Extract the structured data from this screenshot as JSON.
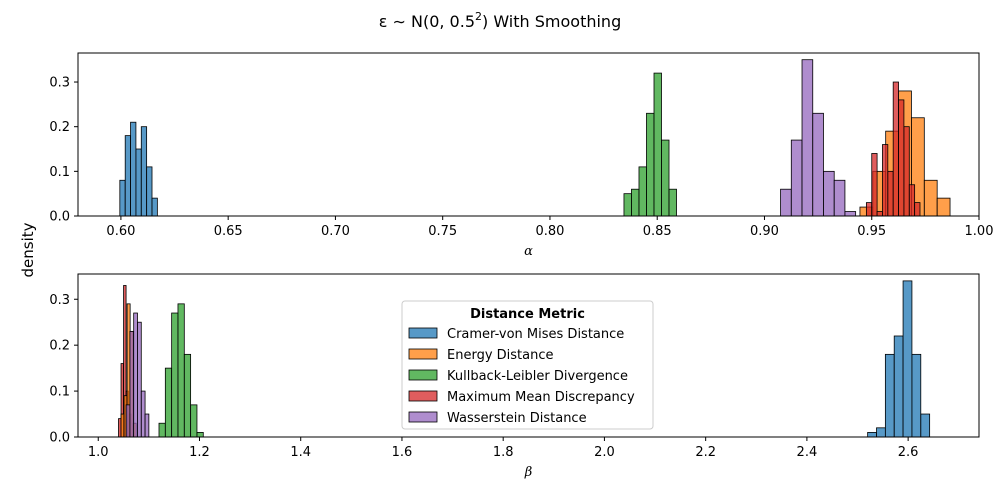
{
  "figure": {
    "title_prefix": "ε ∼ N(0, 0.5",
    "title_sup": "2",
    "title_suffix": ") With Smoothing",
    "ylabel": "density"
  },
  "legend": {
    "title": "Distance Metric",
    "placement": "center",
    "entries": [
      {
        "label": "Cramer-von Mises Distance",
        "color": "#1f77b4"
      },
      {
        "label": "Energy Distance",
        "color": "#ff7f0e"
      },
      {
        "label": "Kullback-Leibler Divergence",
        "color": "#2ca02c"
      },
      {
        "label": "Maximum Mean Discrepancy",
        "color": "#d62728"
      },
      {
        "label": "Wasserstein Distance",
        "color": "#9467bd"
      }
    ]
  },
  "chart_data": [
    {
      "type": "histogram",
      "xlabel": "α",
      "xlim": [
        0.58,
        1.0
      ],
      "ylim": [
        0,
        0.365
      ],
      "xticks": [
        "0.60",
        "0.65",
        "0.70",
        "0.75",
        "0.80",
        "0.85",
        "0.90",
        "0.95",
        "1.00"
      ],
      "yticks": [
        "0.0",
        "0.1",
        "0.2",
        "0.3"
      ],
      "grid": false,
      "series": [
        {
          "name": "Cramer-von Mises Distance",
          "color": "#1f77b4",
          "bin_start": 0.5995,
          "bin_width": 0.0025,
          "values": [
            0.08,
            0.18,
            0.21,
            0.15,
            0.2,
            0.11,
            0.04
          ]
        },
        {
          "name": "Kullback-Leibler Divergence",
          "color": "#2ca02c",
          "bin_start": 0.8345,
          "bin_width": 0.0035,
          "values": [
            0.05,
            0.06,
            0.11,
            0.23,
            0.32,
            0.17,
            0.06
          ]
        },
        {
          "name": "Wasserstein Distance",
          "color": "#9467bd",
          "bin_start": 0.9075,
          "bin_width": 0.005,
          "values": [
            0.06,
            0.17,
            0.35,
            0.23,
            0.1,
            0.08,
            0.01
          ]
        },
        {
          "name": "Energy Distance",
          "color": "#ff7f0e",
          "bin_start": 0.9445,
          "bin_width": 0.006,
          "values": [
            0.02,
            0.1,
            0.19,
            0.28,
            0.22,
            0.08,
            0.04
          ]
        },
        {
          "name": "Maximum Mean Discrepancy",
          "color": "#d62728",
          "bin_start": 0.9475,
          "bin_width": 0.0025,
          "values": [
            0.03,
            0.14,
            0.01,
            0.16,
            0.1,
            0.3,
            0.26,
            0.2,
            0.07,
            0.03
          ]
        }
      ]
    },
    {
      "type": "histogram",
      "xlabel": "β",
      "xlim": [
        0.96,
        2.74
      ],
      "ylim": [
        0,
        0.355
      ],
      "xticks": [
        "1.0",
        "1.2",
        "1.4",
        "1.6",
        "1.8",
        "2.0",
        "2.2",
        "2.4",
        "2.6"
      ],
      "yticks": [
        "0.0",
        "0.1",
        "0.2",
        "0.3"
      ],
      "grid": false,
      "series": [
        {
          "name": "Kullback-Leibler Divergence",
          "color": "#2ca02c",
          "bin_start": 1.12,
          "bin_width": 0.0125,
          "values": [
            0.03,
            0.15,
            0.27,
            0.29,
            0.18,
            0.07,
            0.01
          ]
        },
        {
          "name": "Maximum Mean Discrepancy",
          "color": "#d62728",
          "bin_start": 1.04,
          "bin_width": 0.005,
          "values": [
            0.04,
            0.16,
            0.33,
            0.1,
            0.05
          ]
        },
        {
          "name": "Energy Distance",
          "color": "#ff7f0e",
          "bin_start": 1.045,
          "bin_width": 0.006,
          "values": [
            0.05,
            0.09,
            0.29,
            0.23,
            0.03
          ]
        },
        {
          "name": "Wasserstein Distance",
          "color": "#9467bd",
          "bin_start": 1.055,
          "bin_width": 0.0075,
          "values": [
            0.07,
            0.23,
            0.27,
            0.25,
            0.1,
            0.05
          ]
        },
        {
          "name": "Cramer-von Mises Distance",
          "color": "#1f77b4",
          "bin_start": 2.52,
          "bin_width": 0.0175,
          "values": [
            0.01,
            0.02,
            0.18,
            0.22,
            0.34,
            0.18,
            0.05
          ]
        }
      ]
    }
  ]
}
